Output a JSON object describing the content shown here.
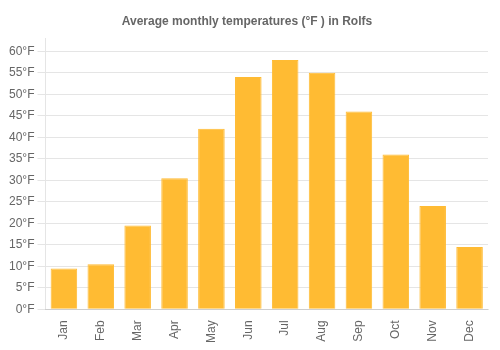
{
  "chart_data": {
    "type": "bar",
    "title": "Average monthly temperatures (°F ) in Rolfs",
    "categories": [
      "Jan",
      "Feb",
      "Mar",
      "Apr",
      "May",
      "Jun",
      "Jul",
      "Aug",
      "Sep",
      "Oct",
      "Nov",
      "Dec"
    ],
    "values": [
      9.5,
      10.5,
      19.5,
      30.5,
      42.0,
      54.0,
      58.0,
      55.0,
      46.0,
      36.0,
      24.0,
      14.5
    ],
    "color": "#FFBB33",
    "ylim": [
      0,
      63
    ],
    "yticks": [
      {
        "value": 0,
        "label": "0°F"
      },
      {
        "value": 5,
        "label": "5°F"
      },
      {
        "value": 10,
        "label": "10°F"
      },
      {
        "value": 15,
        "label": "15°F"
      },
      {
        "value": 20,
        "label": "20°F"
      },
      {
        "value": 25,
        "label": "25°F"
      },
      {
        "value": 30,
        "label": "30°F"
      },
      {
        "value": 35,
        "label": "35°F"
      },
      {
        "value": 40,
        "label": "40°F"
      },
      {
        "value": 45,
        "label": "45°F"
      },
      {
        "value": 50,
        "label": "50°F"
      },
      {
        "value": 55,
        "label": "55°F"
      },
      {
        "value": 60,
        "label": "60°F"
      }
    ],
    "grid": true
  }
}
